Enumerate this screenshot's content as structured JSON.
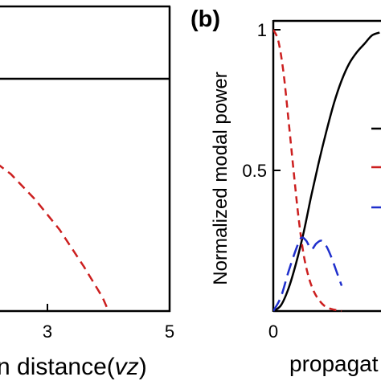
{
  "chart_data": [
    {
      "type": "line",
      "panel_label": "",
      "xlabel": "n distance(vz)",
      "xlabel_parts": [
        "n distance(",
        "vz",
        ")"
      ],
      "ylabel": "",
      "xlim": [
        0,
        5
      ],
      "x_ticks": [
        {
          "value": 3,
          "label": "3"
        },
        {
          "value": 5,
          "label": "5"
        }
      ],
      "grid": false,
      "series": [
        {
          "color": "#000000",
          "dash": "solid",
          "x": [
            0,
            5
          ],
          "y": [
            1.0,
            1.0
          ]
        },
        {
          "color": "#cc1f1f",
          "dash": "dashed",
          "x": [
            0.0,
            0.6,
            1.2,
            1.8,
            2.4,
            2.8,
            3.2,
            3.6,
            3.9,
            4.0
          ],
          "y": [
            0.86,
            0.84,
            0.79,
            0.71,
            0.59,
            0.48,
            0.35,
            0.19,
            0.06,
            0.0
          ]
        }
      ]
    },
    {
      "type": "line",
      "panel_label": "(b)",
      "xlabel": "propagat",
      "ylabel": "Normalized modal power",
      "ylim": [
        0,
        1
      ],
      "y_ticks": [
        {
          "value": 0,
          "label": ""
        },
        {
          "value": 0.5,
          "label": "0.5"
        },
        {
          "value": 1,
          "label": "1"
        }
      ],
      "x_ticks": [
        {
          "value": 0,
          "label": "0"
        }
      ],
      "grid": false,
      "legend": "right",
      "series": [
        {
          "color": "#000000",
          "dash": "solid",
          "x": [
            0,
            0.15,
            0.3,
            0.45,
            0.6,
            0.75,
            0.9,
            1.05,
            1.2,
            1.35,
            1.5,
            1.65,
            1.8,
            1.95,
            2.1
          ],
          "y": [
            0.0,
            0.02,
            0.08,
            0.17,
            0.28,
            0.41,
            0.53,
            0.64,
            0.74,
            0.82,
            0.88,
            0.92,
            0.95,
            0.98,
            0.99
          ]
        },
        {
          "color": "#cc1f1f",
          "dash": "dashed",
          "x": [
            0,
            0.1,
            0.2,
            0.3,
            0.4,
            0.5,
            0.6,
            0.7,
            0.8,
            0.9,
            1.0,
            1.1,
            1.2,
            1.35
          ],
          "y": [
            1.0,
            0.96,
            0.85,
            0.68,
            0.5,
            0.33,
            0.2,
            0.12,
            0.07,
            0.04,
            0.02,
            0.01,
            0.005,
            0.0
          ]
        },
        {
          "color": "#1f2fcc",
          "dash": "dashed",
          "x": [
            0,
            0.15,
            0.3,
            0.45,
            0.55,
            0.65,
            0.75,
            0.85,
            0.95,
            1.05,
            1.15,
            1.25,
            1.35
          ],
          "y": [
            0.0,
            0.05,
            0.14,
            0.22,
            0.26,
            0.25,
            0.22,
            0.24,
            0.25,
            0.23,
            0.19,
            0.14,
            0.09
          ]
        }
      ]
    }
  ]
}
